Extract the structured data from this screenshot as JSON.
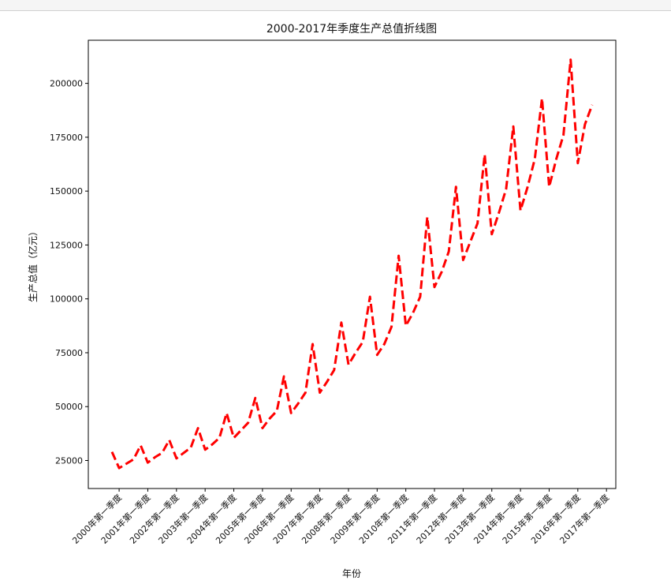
{
  "chart_data": {
    "type": "line",
    "title": "2000-2017年季度生产总值折线图",
    "xlabel": "年份",
    "ylabel": "生产总值（亿元）",
    "ylim": [
      12000,
      220000
    ],
    "yticks": [
      25000,
      50000,
      75000,
      100000,
      125000,
      150000,
      175000,
      200000
    ],
    "xtick_labels": [
      "2000年第一季度",
      "2001年第一季度",
      "2002年第一季度",
      "2003年第一季度",
      "2004年第一季度",
      "2005年第一季度",
      "2006年第一季度",
      "2007年第一季度",
      "2008年第一季度",
      "2009年第一季度",
      "2010年第一季度",
      "2011年第一季度",
      "2012年第一季度",
      "2013年第一季度",
      "2014年第一季度",
      "2015年第一季度",
      "2016年第一季度",
      "2017年第一季度"
    ],
    "series": [
      {
        "line_style": "dashed",
        "color": "#ff0000",
        "values": [
          29000,
          21500,
          23500,
          25500,
          32000,
          24000,
          26500,
          28500,
          34500,
          26000,
          28500,
          31000,
          40000,
          30000,
          32500,
          35500,
          47000,
          35500,
          39000,
          42500,
          54000,
          40000,
          44500,
          48000,
          64000,
          47000,
          51500,
          56500,
          79000,
          56500,
          61500,
          67000,
          89000,
          69500,
          75000,
          80000,
          101000,
          74000,
          79000,
          87000,
          120000,
          87500,
          93500,
          101000,
          138000,
          105500,
          112500,
          122000,
          152000,
          118000,
          126500,
          135000,
          167000,
          130000,
          140000,
          151000,
          180000,
          141000,
          152000,
          165000,
          193000,
          152000,
          165000,
          176000,
          211000,
          163000,
          181000,
          190000
        ]
      }
    ]
  }
}
